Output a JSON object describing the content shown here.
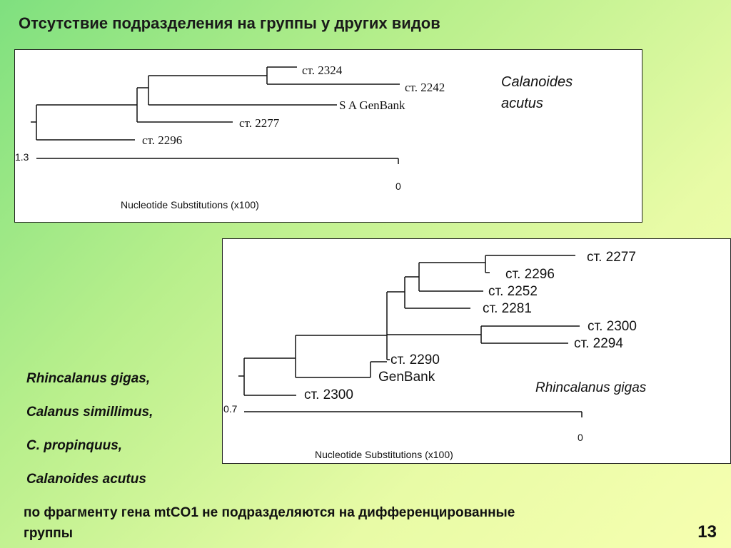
{
  "slide": {
    "title": "Отсутствие подразделения на группы у других видов",
    "page_number": "13",
    "conclusion": "по фрагменту гена mtCO1 не подразделяются на дифференцированные группы",
    "species_list": [
      "Rhincalanus gigas,",
      "Calanus simillimus,",
      "C. propinquus,",
      "Calanoides acutus"
    ]
  },
  "tree_top": {
    "species_line1": "Calanoides",
    "species_line2": "acutus",
    "leaves": {
      "l2324": "ст. 2324",
      "l2242": "ст. 2242",
      "lgen": "S A GenBank",
      "l2277": "ст. 2277",
      "l2296": "ст. 2296"
    },
    "scale_max": "1.3",
    "scale_min": "0",
    "axis_label": "Nucleotide Substitutions (x100)"
  },
  "tree_bottom": {
    "species": "Rhincalanus gigas",
    "leaves": {
      "l2277": "ст. 2277",
      "l2296": "ст. 2296",
      "l2252": "ст. 2252",
      "l2281": "ст. 2281",
      "l2300a": "ст. 2300",
      "l2294": "ст. 2294",
      "l2290": "ст. 2290",
      "lgen": "GenBank",
      "l2300b": "ст. 2300"
    },
    "scale_max": "0.7",
    "scale_min": "0",
    "axis_label": "Nucleotide Substitutions (x100)"
  }
}
